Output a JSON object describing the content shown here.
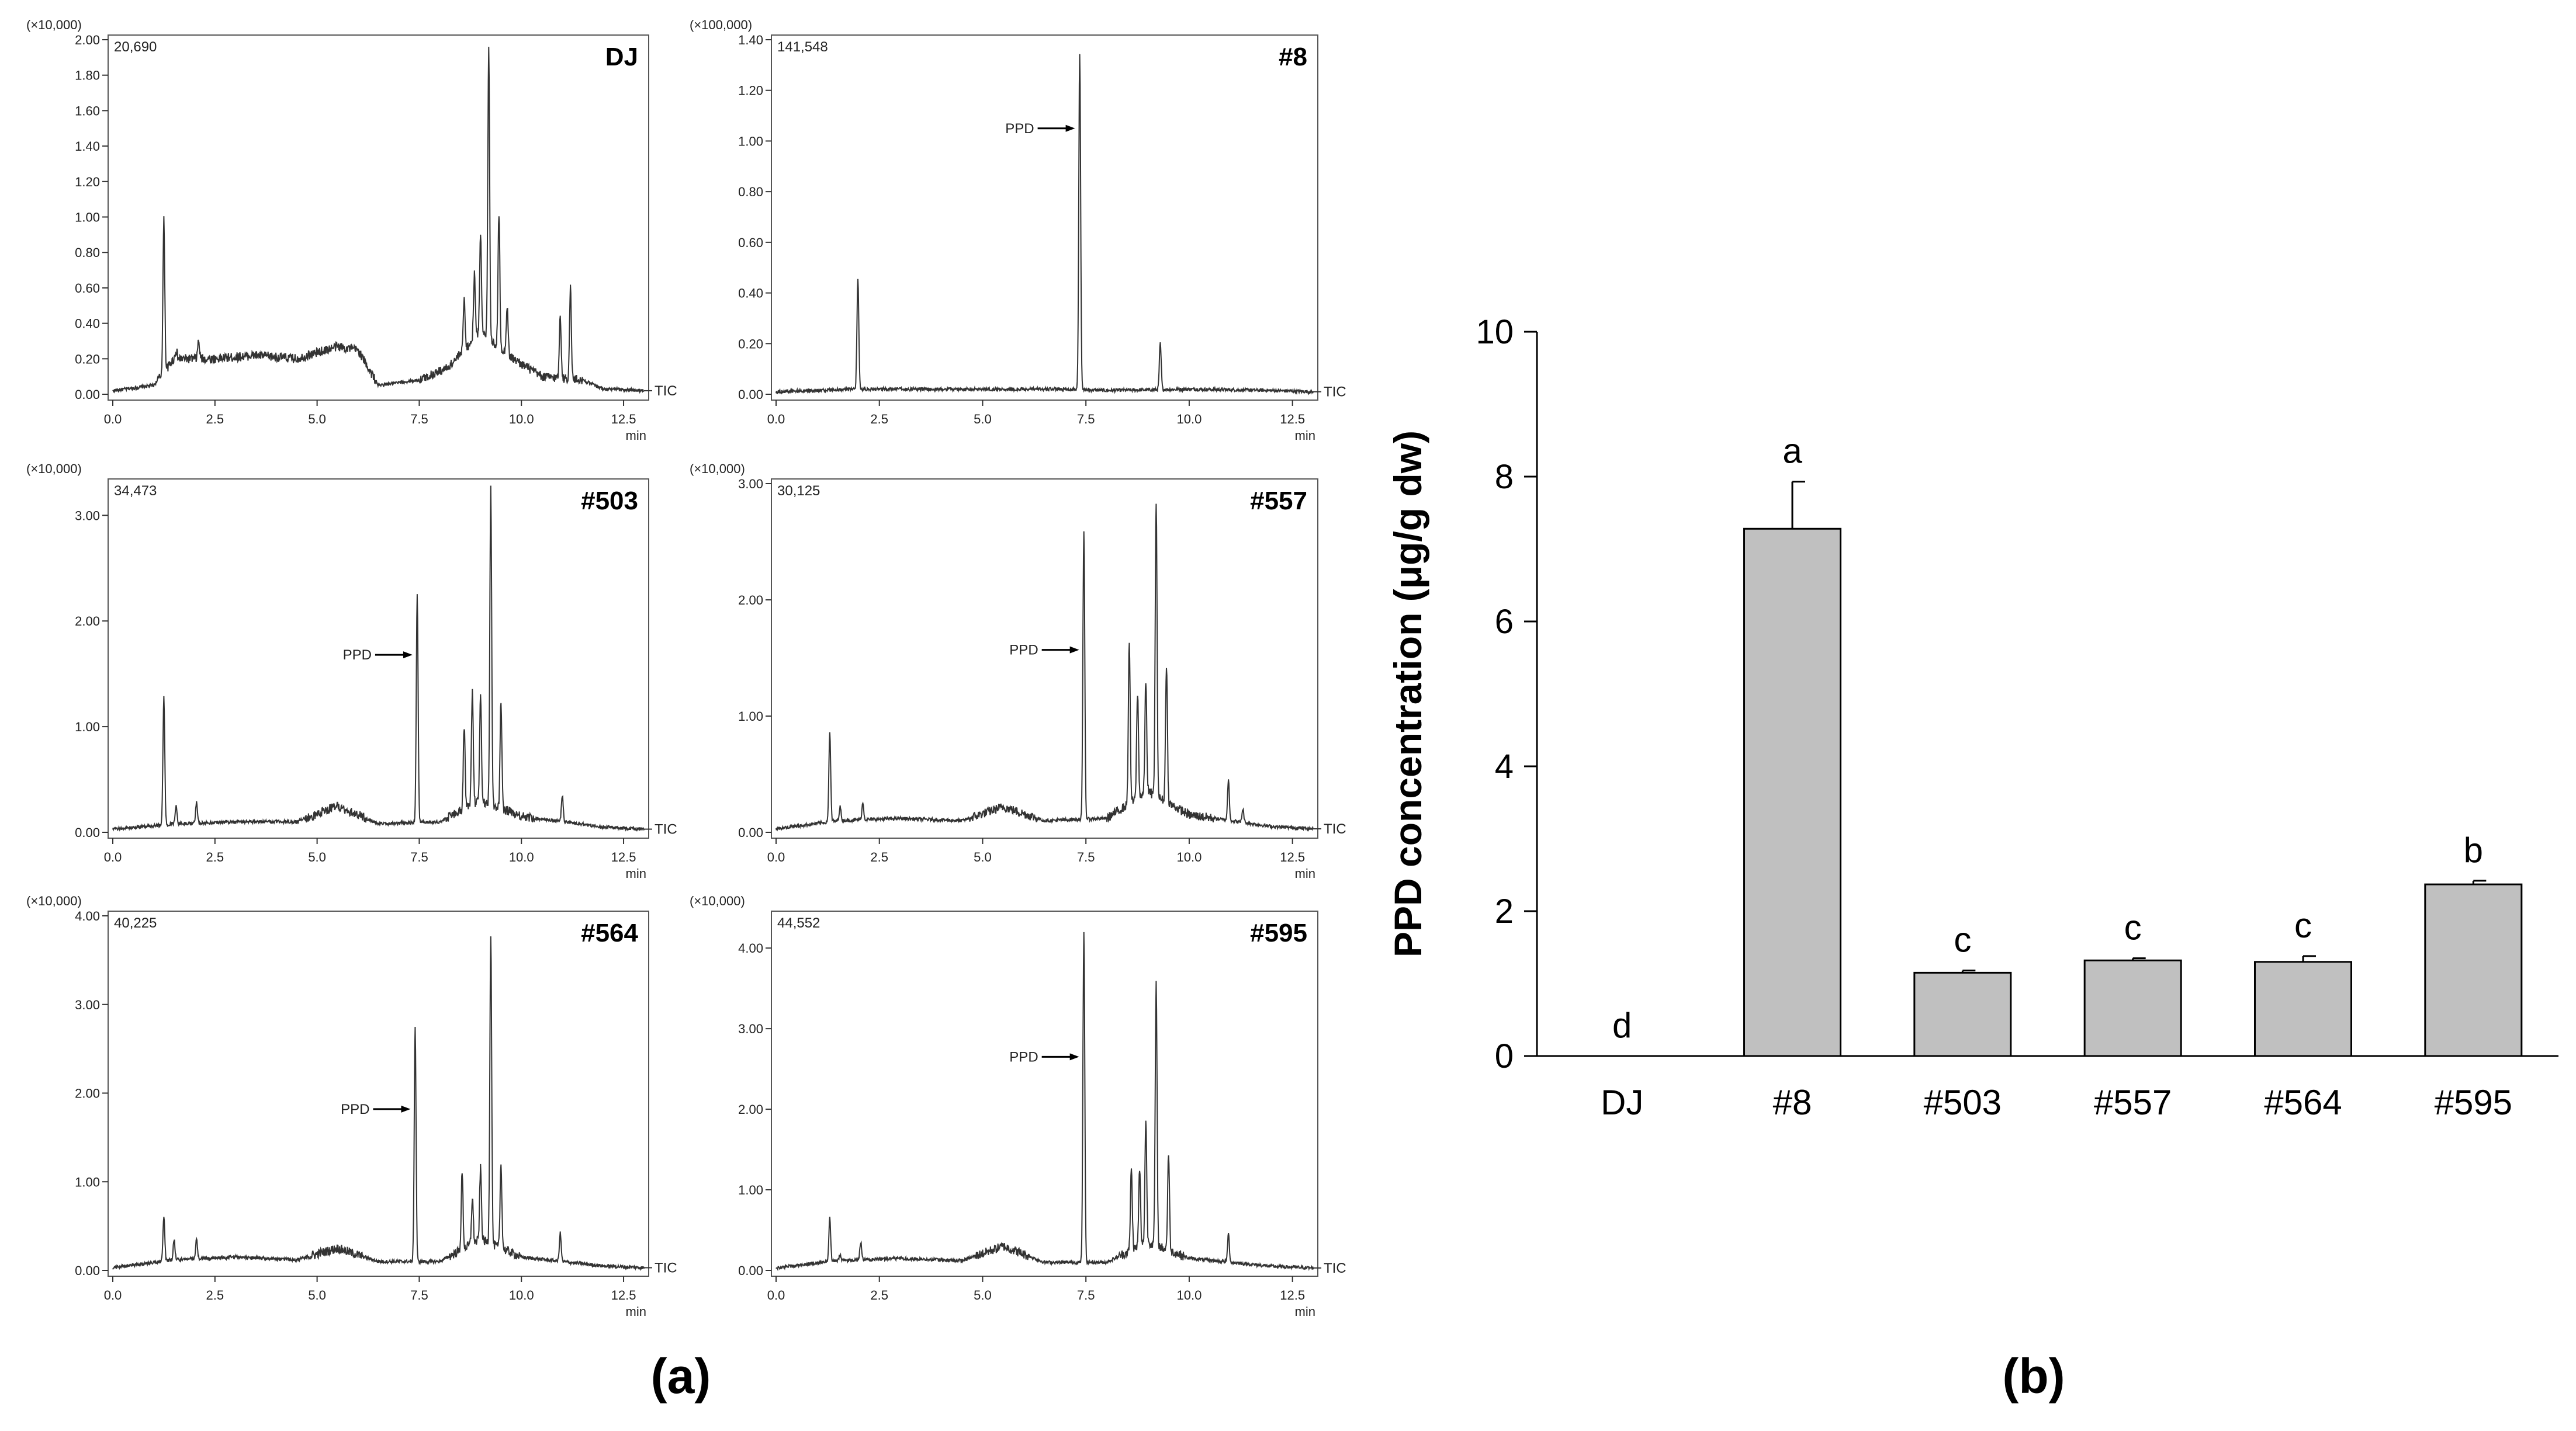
{
  "panel_labels": {
    "a": "(a)",
    "b": "(b)"
  },
  "chart_data": [
    {
      "type": "line",
      "panel": "a",
      "title": "DJ",
      "scale_label": "(×10,000)",
      "intensity_label": "20,690",
      "trace_label": "TIC",
      "xlabel": "min",
      "xlim": [
        0,
        13
      ],
      "xticks": [
        0.0,
        2.5,
        5.0,
        7.5,
        10.0,
        12.5
      ],
      "xtick_labels": [
        "0.0",
        "2.5",
        "5.0",
        "7.5",
        "10.0",
        "12.5"
      ],
      "ylim": [
        0,
        2.0
      ],
      "yticks": [
        0.0,
        0.2,
        0.4,
        0.6,
        0.8,
        1.0,
        1.2,
        1.4,
        1.6,
        1.8,
        2.0
      ],
      "ytick_labels": [
        "0.00",
        "0.20",
        "0.40",
        "0.60",
        "0.80",
        "1.00",
        "1.20",
        "1.40",
        "1.60",
        "1.80",
        "2.00"
      ],
      "baseline": [
        [
          0.0,
          0.02
        ],
        [
          1.0,
          0.05
        ],
        [
          1.5,
          0.2
        ],
        [
          2.5,
          0.2
        ],
        [
          3.5,
          0.22
        ],
        [
          4.5,
          0.2
        ],
        [
          5.5,
          0.27
        ],
        [
          6.0,
          0.25
        ],
        [
          6.5,
          0.05
        ],
        [
          7.5,
          0.08
        ],
        [
          8.2,
          0.15
        ],
        [
          9.0,
          0.35
        ],
        [
          9.8,
          0.2
        ],
        [
          10.5,
          0.1
        ],
        [
          11.5,
          0.08
        ],
        [
          12.0,
          0.03
        ],
        [
          13.0,
          0.02
        ]
      ],
      "peaks": [
        [
          1.25,
          0.98
        ],
        [
          1.55,
          0.25
        ],
        [
          2.1,
          0.3
        ],
        [
          8.6,
          0.55
        ],
        [
          8.85,
          0.68
        ],
        [
          9.0,
          0.92
        ],
        [
          9.2,
          1.95
        ],
        [
          9.45,
          1.02
        ],
        [
          9.65,
          0.5
        ],
        [
          10.95,
          0.45
        ],
        [
          11.2,
          0.6
        ]
      ],
      "arrow": null
    },
    {
      "type": "line",
      "panel": "a",
      "title": "#8",
      "scale_label": "(×100,000)",
      "intensity_label": "141,548",
      "trace_label": "TIC",
      "xlabel": "min",
      "xlim": [
        0,
        13
      ],
      "xticks": [
        0.0,
        2.5,
        5.0,
        7.5,
        10.0,
        12.5
      ],
      "xtick_labels": [
        "0.0",
        "2.5",
        "5.0",
        "7.5",
        "10.0",
        "12.5"
      ],
      "ylim": [
        0,
        1.4
      ],
      "yticks": [
        0.0,
        0.2,
        0.4,
        0.6,
        0.8,
        1.0,
        1.2,
        1.4
      ],
      "ytick_labels": [
        "0.00",
        "0.20",
        "0.40",
        "0.60",
        "0.80",
        "1.00",
        "1.20",
        "1.40"
      ],
      "baseline": [
        [
          0.0,
          0.01
        ],
        [
          2.0,
          0.02
        ],
        [
          4.0,
          0.02
        ],
        [
          6.0,
          0.02
        ],
        [
          7.0,
          0.02
        ],
        [
          8.0,
          0.015
        ],
        [
          10.0,
          0.02
        ],
        [
          12.0,
          0.015
        ],
        [
          13.0,
          0.01
        ]
      ],
      "peaks": [
        [
          1.98,
          0.46
        ],
        [
          7.35,
          1.35
        ],
        [
          9.3,
          0.2
        ]
      ],
      "arrow": {
        "label": "PPD",
        "x": 7.35,
        "y": 1.05
      }
    },
    {
      "type": "line",
      "panel": "a",
      "title": "#503",
      "scale_label": "(×10,000)",
      "intensity_label": "34,473",
      "trace_label": "TIC",
      "xlabel": "min",
      "xlim": [
        0,
        13
      ],
      "xticks": [
        0.0,
        2.5,
        5.0,
        7.5,
        10.0,
        12.5
      ],
      "xtick_labels": [
        "0.0",
        "2.5",
        "5.0",
        "7.5",
        "10.0",
        "12.5"
      ],
      "ylim": [
        0,
        3.3
      ],
      "yticks": [
        0.0,
        1.0,
        2.0,
        3.0
      ],
      "ytick_labels": [
        "0.00",
        "1.00",
        "2.00",
        "3.00"
      ],
      "baseline": [
        [
          0.0,
          0.03
        ],
        [
          1.5,
          0.08
        ],
        [
          3.0,
          0.1
        ],
        [
          4.5,
          0.1
        ],
        [
          5.5,
          0.25
        ],
        [
          6.5,
          0.08
        ],
        [
          8.0,
          0.1
        ],
        [
          9.0,
          0.3
        ],
        [
          10.0,
          0.15
        ],
        [
          11.0,
          0.1
        ],
        [
          12.0,
          0.05
        ],
        [
          13.0,
          0.03
        ]
      ],
      "peaks": [
        [
          1.25,
          1.28
        ],
        [
          1.55,
          0.25
        ],
        [
          2.05,
          0.28
        ],
        [
          7.45,
          2.25
        ],
        [
          8.6,
          1.0
        ],
        [
          8.8,
          1.35
        ],
        [
          9.0,
          1.3
        ],
        [
          9.25,
          3.25
        ],
        [
          9.5,
          1.25
        ],
        [
          11.0,
          0.35
        ]
      ],
      "arrow": {
        "label": "PPD",
        "x": 7.45,
        "y": 1.68
      }
    },
    {
      "type": "line",
      "panel": "a",
      "title": "#557",
      "scale_label": "(×10,000)",
      "intensity_label": "30,125",
      "trace_label": "TIC",
      "xlabel": "min",
      "xlim": [
        0,
        13
      ],
      "xticks": [
        0.0,
        2.5,
        5.0,
        7.5,
        10.0,
        12.5
      ],
      "xtick_labels": [
        "0.0",
        "2.5",
        "5.0",
        "7.5",
        "10.0",
        "12.5"
      ],
      "ylim": [
        0,
        3.0
      ],
      "yticks": [
        0.0,
        1.0,
        2.0,
        3.0
      ],
      "ytick_labels": [
        "0.00",
        "1.00",
        "2.00",
        "3.00"
      ],
      "baseline": [
        [
          0.0,
          0.03
        ],
        [
          1.5,
          0.1
        ],
        [
          3.0,
          0.12
        ],
        [
          4.5,
          0.1
        ],
        [
          5.5,
          0.22
        ],
        [
          6.5,
          0.1
        ],
        [
          8.0,
          0.12
        ],
        [
          9.0,
          0.35
        ],
        [
          10.0,
          0.15
        ],
        [
          11.0,
          0.1
        ],
        [
          12.0,
          0.05
        ],
        [
          13.0,
          0.03
        ]
      ],
      "peaks": [
        [
          1.3,
          0.85
        ],
        [
          1.55,
          0.22
        ],
        [
          2.1,
          0.25
        ],
        [
          7.45,
          2.6
        ],
        [
          8.55,
          1.65
        ],
        [
          8.75,
          1.2
        ],
        [
          8.95,
          1.3
        ],
        [
          9.2,
          2.85
        ],
        [
          9.45,
          1.45
        ],
        [
          10.95,
          0.45
        ],
        [
          11.3,
          0.2
        ]
      ],
      "arrow": {
        "label": "PPD",
        "x": 7.45,
        "y": 1.57
      }
    },
    {
      "type": "line",
      "panel": "a",
      "title": "#564",
      "scale_label": "(×10,000)",
      "intensity_label": "40,225",
      "trace_label": "TIC",
      "xlabel": "min",
      "xlim": [
        0,
        13
      ],
      "xticks": [
        0.0,
        2.5,
        5.0,
        7.5,
        10.0,
        12.5
      ],
      "xtick_labels": [
        "0.0",
        "2.5",
        "5.0",
        "7.5",
        "10.0",
        "12.5"
      ],
      "ylim": [
        0,
        4.0
      ],
      "yticks": [
        0.0,
        1.0,
        2.0,
        3.0,
        4.0
      ],
      "ytick_labels": [
        "0.00",
        "1.00",
        "2.00",
        "3.00",
        "4.00"
      ],
      "baseline": [
        [
          0.0,
          0.03
        ],
        [
          1.5,
          0.12
        ],
        [
          3.0,
          0.15
        ],
        [
          4.5,
          0.12
        ],
        [
          5.5,
          0.25
        ],
        [
          6.5,
          0.1
        ],
        [
          8.0,
          0.1
        ],
        [
          9.0,
          0.35
        ],
        [
          10.0,
          0.15
        ],
        [
          11.0,
          0.1
        ],
        [
          12.0,
          0.05
        ],
        [
          13.0,
          0.03
        ]
      ],
      "peaks": [
        [
          1.25,
          0.62
        ],
        [
          1.5,
          0.35
        ],
        [
          2.05,
          0.35
        ],
        [
          7.4,
          2.75
        ],
        [
          8.55,
          1.1
        ],
        [
          8.8,
          0.82
        ],
        [
          9.0,
          1.15
        ],
        [
          9.25,
          3.8
        ],
        [
          9.5,
          1.2
        ],
        [
          10.95,
          0.42
        ]
      ],
      "arrow": {
        "label": "PPD",
        "x": 7.4,
        "y": 1.82
      }
    },
    {
      "type": "line",
      "panel": "a",
      "title": "#595",
      "scale_label": "(×10,000)",
      "intensity_label": "44,552",
      "trace_label": "TIC",
      "xlabel": "min",
      "xlim": [
        0,
        13
      ],
      "xticks": [
        0.0,
        2.5,
        5.0,
        7.5,
        10.0,
        12.5
      ],
      "xtick_labels": [
        "0.0",
        "2.5",
        "5.0",
        "7.5",
        "10.0",
        "12.5"
      ],
      "ylim": [
        0,
        4.4
      ],
      "yticks": [
        0.0,
        1.0,
        2.0,
        3.0,
        4.0
      ],
      "ytick_labels": [
        "0.00",
        "1.00",
        "2.00",
        "3.00",
        "4.00"
      ],
      "baseline": [
        [
          0.0,
          0.03
        ],
        [
          1.5,
          0.12
        ],
        [
          3.0,
          0.15
        ],
        [
          4.5,
          0.12
        ],
        [
          5.5,
          0.3
        ],
        [
          6.5,
          0.1
        ],
        [
          8.0,
          0.1
        ],
        [
          9.0,
          0.35
        ],
        [
          10.0,
          0.15
        ],
        [
          11.0,
          0.1
        ],
        [
          12.0,
          0.05
        ],
        [
          13.0,
          0.03
        ]
      ],
      "peaks": [
        [
          1.3,
          0.65
        ],
        [
          1.55,
          0.2
        ],
        [
          2.05,
          0.35
        ],
        [
          7.45,
          4.2
        ],
        [
          8.6,
          1.25
        ],
        [
          8.8,
          1.25
        ],
        [
          8.95,
          1.85
        ],
        [
          9.2,
          3.55
        ],
        [
          9.5,
          1.45
        ],
        [
          10.95,
          0.45
        ]
      ],
      "arrow": {
        "label": "PPD",
        "x": 7.45,
        "y": 2.65
      }
    },
    {
      "type": "bar",
      "panel": "b",
      "title": "",
      "xlabel": "",
      "ylabel": "PPD concentration (μg/g dw)",
      "ylim": [
        0,
        10
      ],
      "yticks": [
        0,
        2,
        4,
        6,
        8,
        10
      ],
      "categories": [
        "DJ",
        "#8",
        "#503",
        "#557",
        "#564",
        "#595"
      ],
      "values": [
        0,
        7.28,
        1.15,
        1.32,
        1.3,
        2.37
      ],
      "errors": [
        0,
        0.65,
        0.03,
        0.03,
        0.08,
        0.05
      ],
      "letters": [
        "d",
        "a",
        "c",
        "c",
        "c",
        "b"
      ],
      "bar_color": "#c0c0c0"
    }
  ]
}
